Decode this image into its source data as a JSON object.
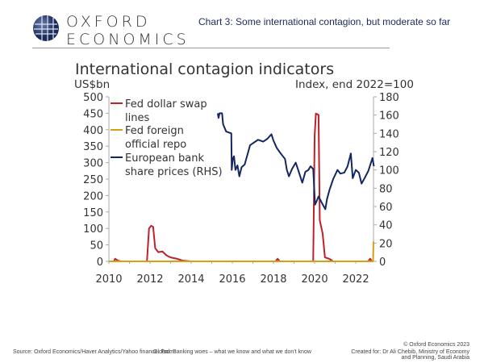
{
  "header": {
    "logo_line1": "OXFORD",
    "logo_line2": "ECONOMICS",
    "subtitle": "Chart 3: Some international  contagion, but moderate so far"
  },
  "footer": {
    "source": "Source:  Oxford Economics/Haver Analytics/Yahoo finance. From:",
    "report": "Global: Banking woes – what we know and what we don't know",
    "copyright": "© Oxford Economics 2023",
    "created_for": "Created for:  Dr Ali Chebib, Ministry of Economy and Planning, Saudi Arabia"
  },
  "colors": {
    "swap": "#c0202a",
    "repo": "#d4a017",
    "banks": "#142760"
  },
  "chart_data": {
    "type": "line",
    "title": "International contagion indicators",
    "ylabel": "US$bn",
    "y2label": "Index, end 2022=100",
    "xlim": [
      2010,
      2022.86
    ],
    "ylim": [
      0,
      500
    ],
    "y2lim": [
      0,
      180
    ],
    "xticks": [
      "2010",
      "2012",
      "2014",
      "2016",
      "2018",
      "2020",
      "2022"
    ],
    "yticks": [
      "0",
      "50",
      "100",
      "150",
      "200",
      "250",
      "300",
      "350",
      "400",
      "450",
      "500"
    ],
    "y2ticks": [
      "0",
      "20",
      "40",
      "60",
      "80",
      "100",
      "120",
      "140",
      "160",
      "180"
    ],
    "legend": [
      "Fed dollar swap lines",
      "Fed foreign official repo",
      "European bank share prices (RHS)"
    ],
    "legend_position": "top-left",
    "series": [
      {
        "name": "Fed dollar swap lines",
        "axis": "left",
        "points": [
          [
            2010,
            0
          ],
          [
            2010.25,
            0
          ],
          [
            2010.3,
            8
          ],
          [
            2010.45,
            2
          ],
          [
            2010.6,
            0
          ],
          [
            2011.85,
            0
          ],
          [
            2011.95,
            100
          ],
          [
            2012.05,
            108
          ],
          [
            2012.15,
            105
          ],
          [
            2012.25,
            40
          ],
          [
            2012.4,
            28
          ],
          [
            2012.6,
            30
          ],
          [
            2012.8,
            18
          ],
          [
            2013.0,
            12
          ],
          [
            2013.3,
            8
          ],
          [
            2013.6,
            2
          ],
          [
            2014,
            0
          ],
          [
            2018.1,
            0
          ],
          [
            2018.2,
            8
          ],
          [
            2018.3,
            0
          ],
          [
            2019.93,
            0
          ],
          [
            2020.0,
            380
          ],
          [
            2020.06,
            449
          ],
          [
            2020.19,
            445
          ],
          [
            2020.25,
            125
          ],
          [
            2020.39,
            84
          ],
          [
            2020.5,
            12
          ],
          [
            2020.7,
            8
          ],
          [
            2020.9,
            0
          ],
          [
            2022.6,
            0
          ],
          [
            2022.7,
            8
          ],
          [
            2022.78,
            0
          ],
          [
            2022.86,
            0
          ]
        ]
      },
      {
        "name": "Fed foreign official repo",
        "axis": "left",
        "points": [
          [
            2010,
            0
          ],
          [
            2022.84,
            0
          ],
          [
            2022.86,
            60
          ]
        ]
      },
      {
        "name": "European bank share prices (RHS)",
        "axis": "right",
        "points": [
          [
            2015.29,
            162
          ],
          [
            2015.33,
            157
          ],
          [
            2015.38,
            162
          ],
          [
            2015.5,
            162
          ],
          [
            2015.55,
            150
          ],
          [
            2015.7,
            142
          ],
          [
            2015.95,
            140
          ],
          [
            2015.97,
            100
          ],
          [
            2016.02,
            112
          ],
          [
            2016.08,
            115
          ],
          [
            2016.15,
            100
          ],
          [
            2016.25,
            105
          ],
          [
            2016.34,
            93
          ],
          [
            2016.45,
            103
          ],
          [
            2016.6,
            106
          ],
          [
            2016.75,
            118
          ],
          [
            2016.86,
            127
          ],
          [
            2017.05,
            130
          ],
          [
            2017.25,
            133
          ],
          [
            2017.5,
            131
          ],
          [
            2017.7,
            134
          ],
          [
            2017.9,
            139
          ],
          [
            2018.0,
            132
          ],
          [
            2018.16,
            124
          ],
          [
            2018.35,
            118
          ],
          [
            2018.56,
            112
          ],
          [
            2018.65,
            100
          ],
          [
            2018.75,
            93
          ],
          [
            2018.9,
            101
          ],
          [
            2019.08,
            108
          ],
          [
            2019.2,
            100
          ],
          [
            2019.4,
            86
          ],
          [
            2019.55,
            98
          ],
          [
            2019.7,
            100
          ],
          [
            2019.8,
            104
          ],
          [
            2019.93,
            101
          ],
          [
            2020.02,
            62
          ],
          [
            2020.1,
            66
          ],
          [
            2020.19,
            71
          ],
          [
            2020.35,
            64
          ],
          [
            2020.52,
            57
          ],
          [
            2020.6,
            68
          ],
          [
            2020.72,
            78
          ],
          [
            2020.9,
            90
          ],
          [
            2021.11,
            100
          ],
          [
            2021.25,
            96
          ],
          [
            2021.44,
            97
          ],
          [
            2021.6,
            104
          ],
          [
            2021.76,
            118
          ],
          [
            2021.85,
            91
          ],
          [
            2022.0,
            100
          ],
          [
            2022.15,
            97
          ],
          [
            2022.28,
            85
          ],
          [
            2022.45,
            92
          ],
          [
            2022.61,
            99
          ],
          [
            2022.81,
            113
          ],
          [
            2022.88,
            104
          ]
        ]
      }
    ]
  }
}
